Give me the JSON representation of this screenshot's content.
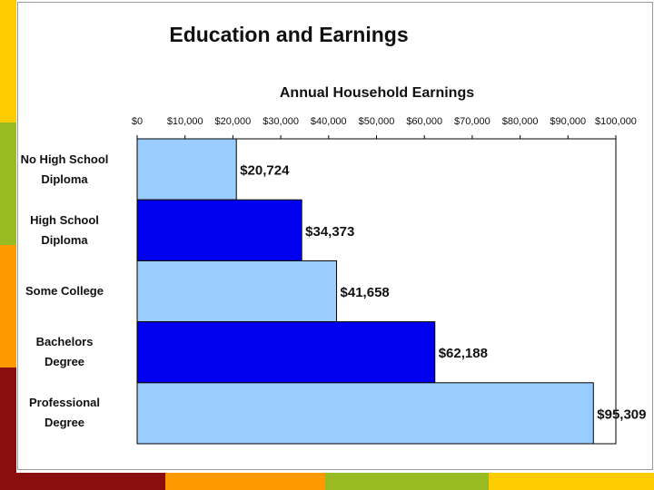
{
  "colors": {
    "bar_light": "#99ccff",
    "bar_dark": "#0000ee",
    "strip_yellow": "#ffcc00",
    "strip_green": "#99bb22",
    "strip_orange": "#ff9900",
    "strip_red": "#8b0e0e"
  },
  "chart_data": {
    "type": "bar",
    "orientation": "horizontal",
    "title": "Education and Earnings",
    "xlabel": "Annual Household Earnings",
    "ylabel": "",
    "xlim": [
      0,
      100000
    ],
    "x_ticks": [
      0,
      10000,
      20000,
      30000,
      40000,
      50000,
      60000,
      70000,
      80000,
      90000,
      100000
    ],
    "x_tick_labels": [
      "$0",
      "$10,000",
      "$20,000",
      "$30,000",
      "$40,000",
      "$50,000",
      "$60,000",
      "$70,000",
      "$80,000",
      "$90,000",
      "$100,000"
    ],
    "axis_position": "top",
    "grid": false,
    "categories": [
      [
        "No High School",
        "Diploma"
      ],
      [
        "High School",
        "Diploma"
      ],
      [
        "Some College"
      ],
      [
        "Bachelors",
        "Degree"
      ],
      [
        "Professional",
        "Degree"
      ]
    ],
    "values": [
      20724,
      34373,
      41658,
      62188,
      95309
    ],
    "data_labels": [
      "$20,724",
      "$34,373",
      "$41,658",
      "$62,188",
      "$95,309"
    ],
    "bar_colors": [
      "#99ccff",
      "#0000ee",
      "#99ccff",
      "#0000ee",
      "#99ccff"
    ]
  }
}
